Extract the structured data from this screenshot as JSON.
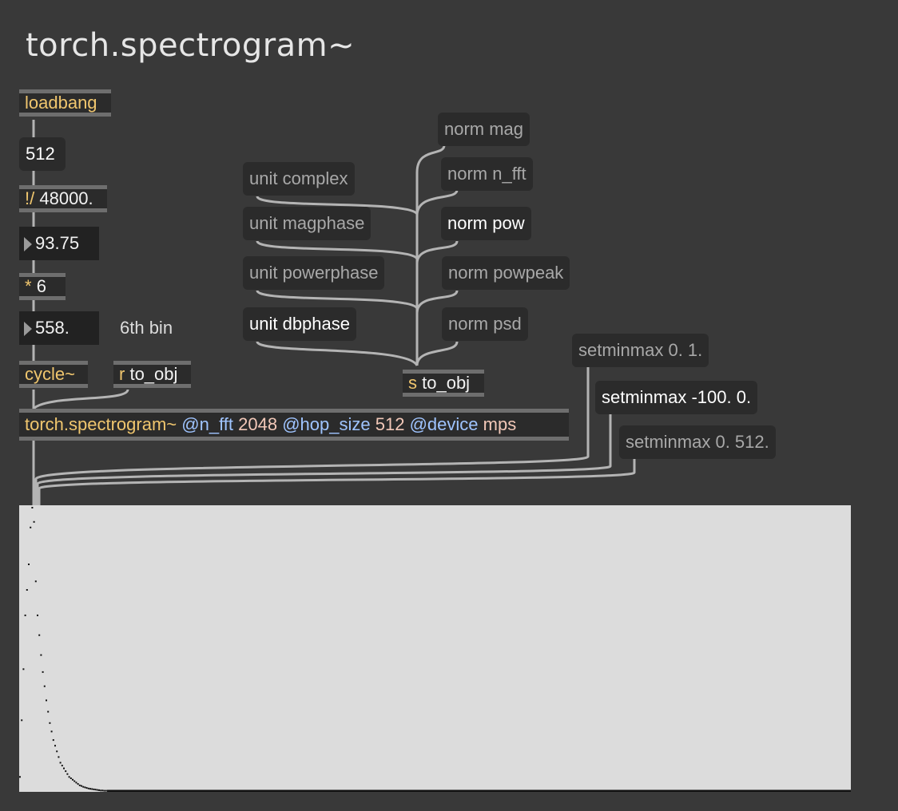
{
  "title": "torch.spectrogram~",
  "objects": {
    "loadbang": "loadbang",
    "divide_op": "!/",
    "divide_arg": "48000.",
    "mult_op": "*",
    "mult_arg": "6",
    "cycle": "cycle~",
    "receive_op": "r",
    "receive_arg": "to_obj",
    "send_op": "s",
    "send_arg": "to_obj",
    "spectrogram": {
      "name": "torch.spectrogram~",
      "attr1": "@n_fft",
      "val1": "2048",
      "attr2": "@hop_size",
      "val2": "512",
      "attr3": "@device",
      "val3": "mps"
    }
  },
  "messages": {
    "n512": "512",
    "unit_complex": "unit complex",
    "unit_magphase": "unit magphase",
    "unit_powerphase": "unit powerphase",
    "unit_dbphase": "unit dbphase",
    "norm_mag": "norm mag",
    "norm_nfft": "norm n_fft",
    "norm_pow": "norm pow",
    "norm_powpeak": "norm powpeak",
    "norm_psd": "norm psd",
    "setminmax_01": "setminmax 0. 1.",
    "setminmax_db": "setminmax -100. 0.",
    "setminmax_512": "setminmax 0. 512."
  },
  "numbers": {
    "freq": "93.75",
    "bin_freq": "558."
  },
  "comment_bin": "6th bin",
  "chart_data": {
    "type": "scatter",
    "title": "",
    "xlabel": "",
    "ylabel": "",
    "ylim": [
      0,
      1
    ],
    "series": [
      {
        "x": [
          0,
          1,
          2,
          3,
          4,
          5,
          6,
          7,
          8,
          9,
          10,
          11,
          12,
          13,
          14,
          15,
          16,
          17,
          18,
          19,
          20,
          21,
          22,
          23,
          24,
          25,
          26,
          27,
          28,
          29,
          30,
          31,
          32,
          33,
          34,
          35,
          36,
          37,
          38,
          39,
          40,
          41,
          42,
          43,
          44,
          45,
          46,
          47,
          48,
          49,
          50,
          60,
          80,
          100,
          150,
          200,
          300,
          400,
          500,
          511
        ],
        "y": [
          0.05,
          0.25,
          0.43,
          0.62,
          0.71,
          0.8,
          0.93,
          1.0,
          0.95,
          0.74,
          0.62,
          0.55,
          0.48,
          0.42,
          0.37,
          0.32,
          0.28,
          0.24,
          0.21,
          0.18,
          0.16,
          0.14,
          0.12,
          0.1,
          0.09,
          0.08,
          0.07,
          0.06,
          0.05,
          0.045,
          0.04,
          0.035,
          0.03,
          0.025,
          0.02,
          0.018,
          0.015,
          0.013,
          0.011,
          0.009,
          0.008,
          0.007,
          0.006,
          0.005,
          0.004,
          0.003,
          0.002,
          0.002,
          0.001,
          0.001,
          0.0,
          0.0,
          0.0,
          0.0,
          0.0,
          0.0,
          0.0,
          0.0,
          0.0,
          0.0
        ]
      }
    ]
  }
}
